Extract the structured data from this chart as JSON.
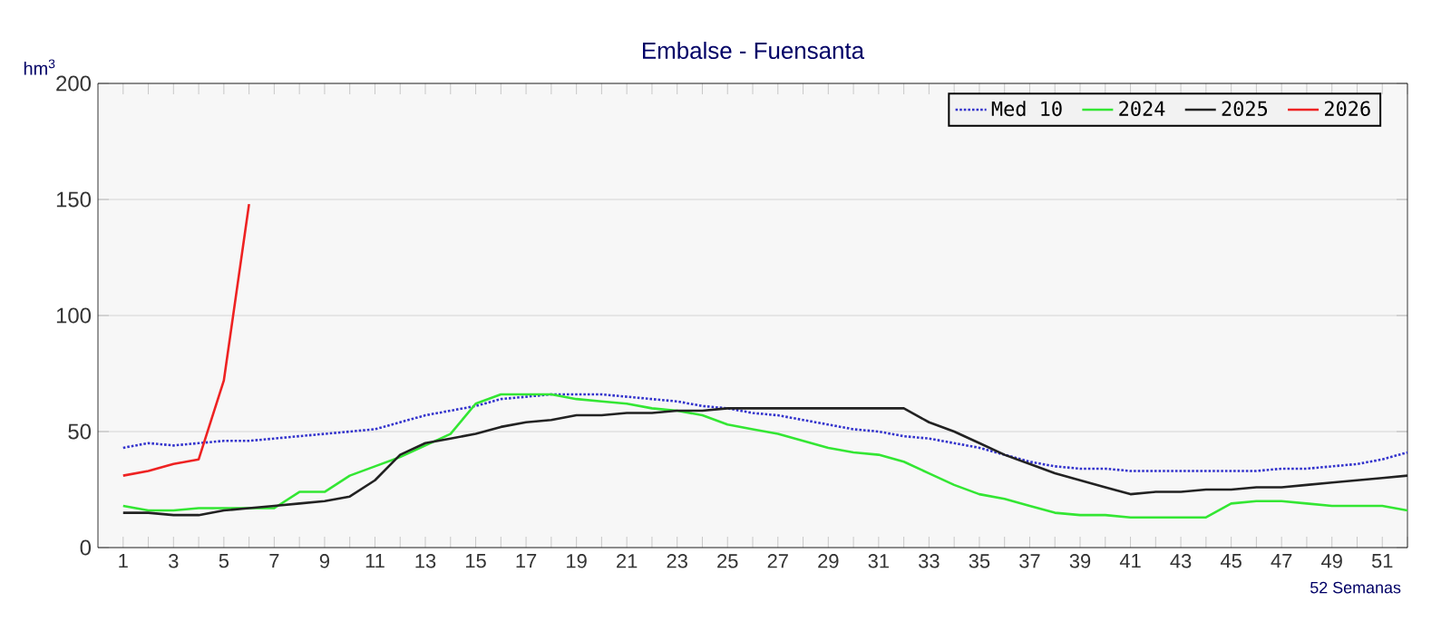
{
  "chart_data": {
    "type": "line",
    "title": "Embalse - Fuensanta",
    "xlabel": "52 Semanas",
    "ylabel": "hm$^{3}$",
    "x": [
      1,
      2,
      3,
      4,
      5,
      6,
      7,
      8,
      9,
      10,
      11,
      12,
      13,
      14,
      15,
      16,
      17,
      18,
      19,
      20,
      21,
      22,
      23,
      24,
      25,
      26,
      27,
      28,
      29,
      30,
      31,
      32,
      33,
      34,
      35,
      36,
      37,
      38,
      39,
      40,
      41,
      42,
      43,
      44,
      45,
      46,
      47,
      48,
      49,
      50,
      51,
      52
    ],
    "xlim": [
      0,
      52
    ],
    "xticks": [
      1,
      {
        "value": 2,
        "label": null
      },
      3,
      {
        "value": 4,
        "label": null
      },
      5,
      {
        "value": 6,
        "label": null
      },
      7,
      {
        "value": 8,
        "label": null
      },
      9,
      {
        "value": 10,
        "label": null
      },
      11,
      {
        "value": 12,
        "label": null
      },
      13,
      {
        "value": 14,
        "label": null
      },
      15,
      {
        "value": 16,
        "label": null
      },
      17,
      {
        "value": 18,
        "label": null
      },
      19,
      {
        "value": 20,
        "label": null
      },
      21,
      {
        "value": 22,
        "label": null
      },
      23,
      {
        "value": 24,
        "label": null
      },
      25,
      {
        "value": 26,
        "label": null
      },
      27,
      {
        "value": 28,
        "label": null
      },
      29,
      {
        "value": 30,
        "label": null
      },
      31,
      {
        "value": 32,
        "label": null
      },
      33,
      {
        "value": 34,
        "label": null
      },
      35,
      {
        "value": 36,
        "label": null
      },
      37,
      {
        "value": 38,
        "label": null
      },
      39,
      {
        "value": 40,
        "label": null
      },
      41,
      {
        "value": 42,
        "label": null
      },
      43,
      {
        "value": 44,
        "label": null
      },
      45,
      {
        "value": 46,
        "label": null
      },
      47,
      {
        "value": 48,
        "label": null
      },
      49,
      {
        "value": 50,
        "label": null
      },
      51,
      {
        "value": 52,
        "label": null
      }
    ],
    "ylim": [
      0,
      200
    ],
    "yticks": [
      0,
      50,
      100,
      150,
      200
    ],
    "grid": "y",
    "legend": "top right",
    "marker": "none",
    "series": [
      {
        "name": "Med 10",
        "color": "#3333cc",
        "line_style": "dotted",
        "values": [
          43,
          45,
          44,
          45,
          46,
          46,
          47,
          48,
          49,
          50,
          51,
          54,
          57,
          59,
          61,
          64,
          65,
          66,
          66,
          66,
          65,
          64,
          63,
          61,
          60,
          58,
          57,
          55,
          53,
          51,
          50,
          48,
          47,
          45,
          43,
          40,
          37,
          35,
          34,
          34,
          33,
          33,
          33,
          33,
          33,
          33,
          34,
          34,
          35,
          36,
          38,
          41
        ]
      },
      {
        "name": "2024",
        "color": "#33e633",
        "line_style": "solid",
        "values": [
          18,
          16,
          16,
          17,
          17,
          17,
          17,
          24,
          24,
          31,
          35,
          39,
          44,
          49,
          62,
          66,
          66,
          66,
          64,
          63,
          62,
          60,
          59,
          57,
          53,
          51,
          49,
          46,
          43,
          41,
          40,
          37,
          32,
          27,
          23,
          21,
          18,
          15,
          14,
          14,
          13,
          13,
          13,
          13,
          19,
          20,
          20,
          19,
          18,
          18,
          18,
          16
        ]
      },
      {
        "name": "2025",
        "color": "#222222",
        "line_style": "solid",
        "values": [
          15,
          15,
          14,
          14,
          16,
          17,
          18,
          19,
          20,
          22,
          29,
          40,
          45,
          47,
          49,
          52,
          54,
          55,
          57,
          57,
          58,
          58,
          59,
          59,
          60,
          60,
          60,
          60,
          60,
          60,
          60,
          60,
          54,
          50,
          45,
          40,
          36,
          32,
          29,
          26,
          23,
          24,
          24,
          25,
          25,
          26,
          26,
          27,
          28,
          29,
          30,
          31
        ]
      },
      {
        "name": "2026",
        "color": "#ee2222",
        "line_style": "solid",
        "values": [
          31,
          33,
          36,
          38,
          72,
          148,
          null,
          null,
          null,
          null,
          null,
          null,
          null,
          null,
          null,
          null,
          null,
          null,
          null,
          null,
          null,
          null,
          null,
          null,
          null,
          null,
          null,
          null,
          null,
          null,
          null,
          null,
          null,
          null,
          null,
          null,
          null,
          null,
          null,
          null,
          null,
          null,
          null,
          null,
          null,
          null,
          null,
          null,
          null,
          null,
          null,
          null
        ]
      }
    ]
  }
}
